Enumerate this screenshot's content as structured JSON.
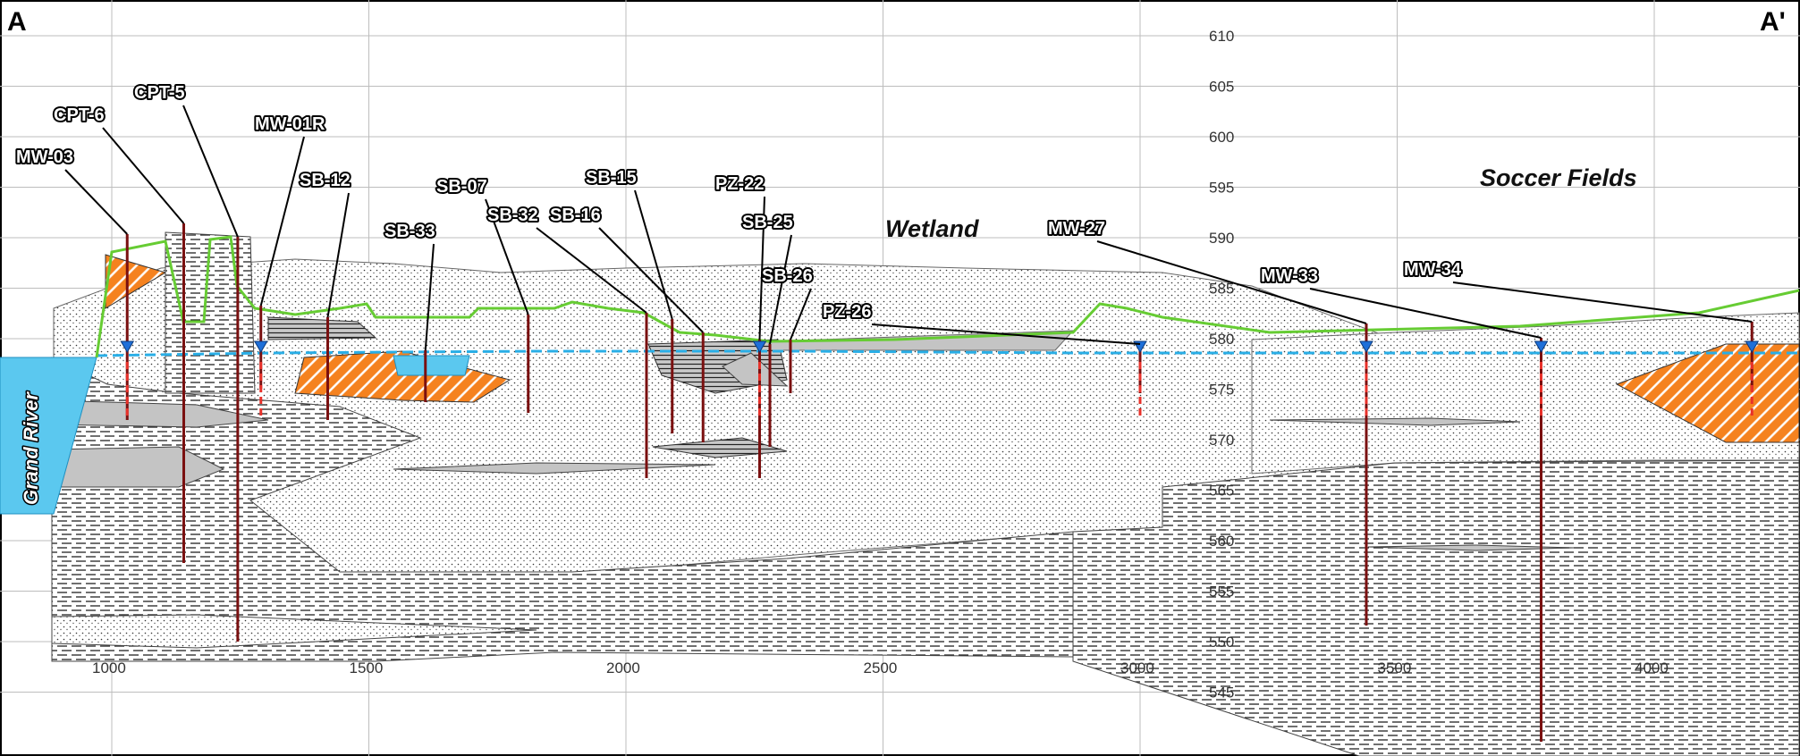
{
  "section": {
    "start_label": "A",
    "end_label": "A'",
    "distance_ticks": [
      "1000",
      "1500",
      "2000",
      "2500",
      "3000",
      "3500",
      "4000"
    ],
    "elevation_ticks": [
      "610",
      "605",
      "600",
      "595",
      "590",
      "585",
      "580",
      "575",
      "570",
      "565",
      "560",
      "555",
      "550",
      "545"
    ],
    "area_labels": {
      "wetland": "Wetland",
      "soccer_fields": "Soccer Fields",
      "river": "Grand River"
    },
    "colors": {
      "ground_surface": "#66cc33",
      "water_table": "#29aee6",
      "well_casing": "#7a1010",
      "screen": "#e8312a",
      "orange_unit": "#f5821f",
      "gray_unit": "#c4c4c4",
      "water": "#5bc8ef"
    },
    "wells": [
      {
        "id": "MW-03",
        "distance": 1030
      },
      {
        "id": "CPT-6",
        "distance": 1140
      },
      {
        "id": "CPT-5",
        "distance": 1245
      },
      {
        "id": "MW-01R",
        "distance": 1290
      },
      {
        "id": "SB-12",
        "distance": 1420
      },
      {
        "id": "SB-33",
        "distance": 1610
      },
      {
        "id": "SB-07",
        "distance": 1810
      },
      {
        "id": "SB-32",
        "distance": 2040
      },
      {
        "id": "SB-15",
        "distance": 2090
      },
      {
        "id": "SB-16",
        "distance": 2150
      },
      {
        "id": "PZ-22",
        "distance": 2260
      },
      {
        "id": "SB-25",
        "distance": 2280
      },
      {
        "id": "SB-26",
        "distance": 2320
      },
      {
        "id": "PZ-26",
        "distance": 3000
      },
      {
        "id": "MW-27",
        "distance": 3440
      },
      {
        "id": "MW-33",
        "distance": 3780
      },
      {
        "id": "MW-34",
        "distance": 4190
      }
    ]
  }
}
